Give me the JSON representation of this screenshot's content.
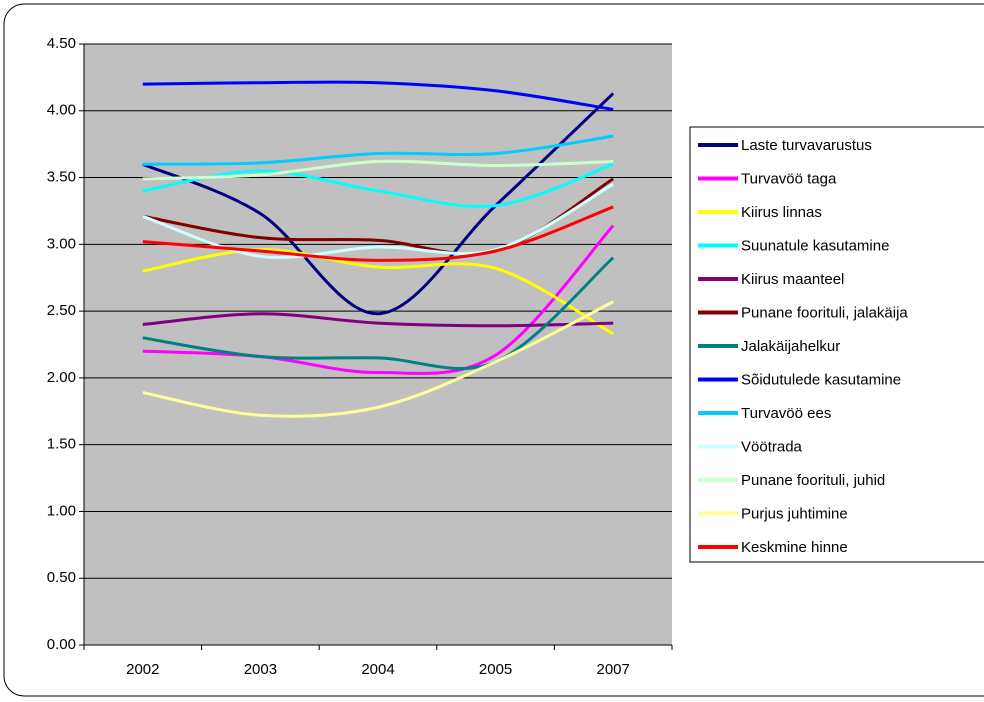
{
  "chart_data": {
    "type": "line",
    "categories": [
      "2002",
      "2003",
      "2004",
      "2005",
      "2007"
    ],
    "ylim": [
      0,
      4.5
    ],
    "yticks": [
      {
        "value": 0,
        "label": "0.00"
      },
      {
        "value": 0.5,
        "label": "0.50"
      },
      {
        "value": 1,
        "label": "1.00"
      },
      {
        "value": 1.5,
        "label": "1.50"
      },
      {
        "value": 2,
        "label": "2.00"
      },
      {
        "value": 2.5,
        "label": "2.50"
      },
      {
        "value": 3,
        "label": "3.00"
      },
      {
        "value": 3.5,
        "label": "3.50"
      },
      {
        "value": 4,
        "label": "4.00"
      },
      {
        "value": 4.5,
        "label": "4.50"
      }
    ],
    "grid": true,
    "smooth": true,
    "legend": "right",
    "series": [
      {
        "name": "Laste turvavarustus",
        "color": "#000080",
        "values": [
          3.6,
          3.23,
          2.48,
          3.29,
          4.13
        ]
      },
      {
        "name": "Turvavöö taga",
        "color": "#ff00ff",
        "values": [
          2.2,
          2.16,
          2.04,
          2.17,
          3.14
        ]
      },
      {
        "name": "Kiirus linnas",
        "color": "#ffff00",
        "values": [
          2.8,
          2.96,
          2.83,
          2.82,
          2.33
        ]
      },
      {
        "name": "Suunatule kasutamine",
        "color": "#00ffff",
        "values": [
          3.4,
          3.55,
          3.4,
          3.29,
          3.6
        ]
      },
      {
        "name": "Kiirus maanteel",
        "color": "#800080",
        "values": [
          2.4,
          2.48,
          2.41,
          2.39,
          2.41
        ]
      },
      {
        "name": "Punane foorituli, jalakäija",
        "color": "#800000",
        "values": [
          3.21,
          3.05,
          3.03,
          2.95,
          3.49
        ]
      },
      {
        "name": "Jalakäijahelkur",
        "color": "#008080",
        "values": [
          2.3,
          2.16,
          2.15,
          2.12,
          2.9
        ]
      },
      {
        "name": "Sõidutulede kasutamine",
        "color": "#0000ff",
        "values": [
          4.2,
          4.21,
          4.21,
          4.15,
          4.01
        ]
      },
      {
        "name": "Turvavöö ees",
        "color": "#00ccff",
        "values": [
          3.6,
          3.61,
          3.68,
          3.68,
          3.81
        ]
      },
      {
        "name": "Vöötrada",
        "color": "#ccffff",
        "values": [
          3.21,
          2.91,
          2.98,
          2.96,
          3.45
        ]
      },
      {
        "name": "Punane foorituli, juhid",
        "color": "#ccffcc",
        "values": [
          3.49,
          3.52,
          3.62,
          3.59,
          3.62
        ]
      },
      {
        "name": "Purjus juhtimine",
        "color": "#ffff99",
        "values": [
          1.89,
          1.72,
          1.78,
          2.12,
          2.57
        ]
      },
      {
        "name": "Keskmine hinne",
        "color": "#ff0000",
        "values": [
          3.02,
          2.95,
          2.88,
          2.95,
          3.28
        ]
      }
    ]
  }
}
